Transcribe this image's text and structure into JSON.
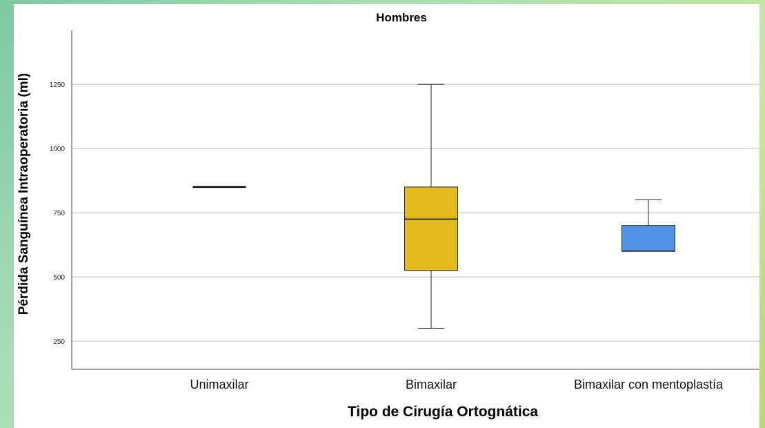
{
  "chart_data": {
    "type": "boxplot",
    "title": "Hombres",
    "xlabel": "Tipo de Cirugía Ortognática",
    "ylabel": "Pérdida Sanguínea Intraoperatoria (ml)",
    "ylim": [
      140,
      1460
    ],
    "yticks": [
      250,
      500,
      750,
      1000,
      1250
    ],
    "grid": true,
    "categories": [
      "Unimaxilar",
      "Bimaxilar",
      "Bimaxilar con mentoplastía"
    ],
    "boxes": [
      {
        "category": "Unimaxilar",
        "min": 850,
        "q1": 850,
        "median": 850,
        "q3": 850,
        "max": 850,
        "color": "#000000"
      },
      {
        "category": "Bimaxilar",
        "min": 300,
        "q1": 525,
        "median": 725,
        "q3": 850,
        "max": 1250,
        "color": "#e3bb1e"
      },
      {
        "category": "Bimaxilar con mentoplastía",
        "min": 600,
        "q1": 600,
        "median": 600,
        "q3": 700,
        "max": 800,
        "color": "#4f94e6"
      }
    ]
  }
}
